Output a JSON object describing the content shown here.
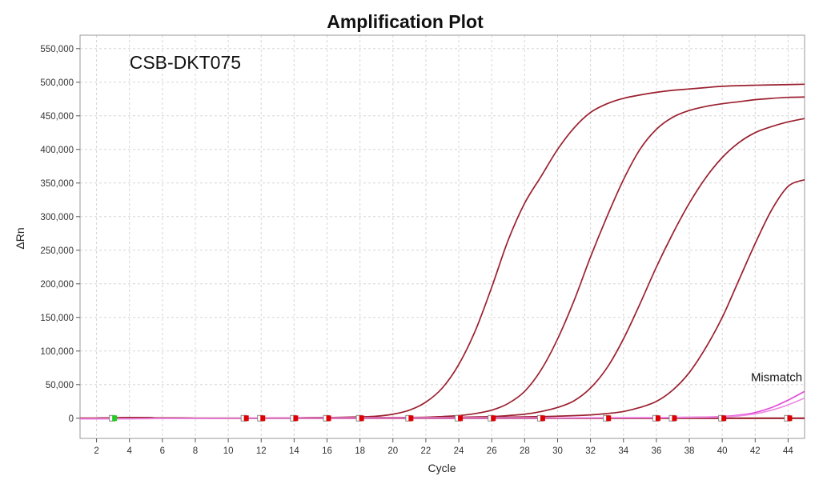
{
  "chart_data": {
    "type": "line",
    "title": "Amplification Plot",
    "xlabel": "Cycle",
    "ylabel": "ΔRn",
    "xlim": [
      1,
      45
    ],
    "ylim": [
      -30000,
      570000
    ],
    "x_ticks": [
      2,
      4,
      6,
      8,
      10,
      12,
      14,
      16,
      18,
      20,
      22,
      24,
      26,
      28,
      30,
      32,
      34,
      36,
      38,
      40,
      42,
      44
    ],
    "y_ticks": [
      0,
      50000,
      100000,
      150000,
      200000,
      250000,
      300000,
      350000,
      400000,
      450000,
      500000,
      550000
    ],
    "y_tick_labels": [
      "0",
      "50,000",
      "100,000",
      "150,000",
      "200,000",
      "250,000",
      "300,000",
      "350,000",
      "400,000",
      "450,000",
      "500,000",
      "550,000"
    ],
    "grid": true,
    "annotations": [
      {
        "text": "CSB-DKT075",
        "x": 4,
        "y": 520000,
        "style": "large"
      },
      {
        "text": "Mismatch",
        "x": 43.3,
        "y": 55000,
        "style": "small"
      }
    ],
    "series": [
      {
        "color": "#9b1f2e",
        "x": [
          1,
          2,
          4,
          6,
          8,
          10,
          12,
          14,
          16,
          18,
          19,
          20,
          21,
          22,
          23,
          24,
          25,
          26,
          27,
          28,
          29,
          30,
          31,
          32,
          33,
          34,
          35,
          36,
          37,
          38,
          39,
          40,
          42,
          44,
          45
        ],
        "y": [
          -1000,
          0,
          1000,
          500,
          0,
          0,
          0,
          500,
          1000,
          2000,
          3000,
          6000,
          12000,
          24000,
          45000,
          80000,
          130000,
          195000,
          265000,
          320000,
          360000,
          400000,
          432000,
          455000,
          468000,
          476000,
          481000,
          485000,
          488000,
          490000,
          492000,
          494000,
          495500,
          496500,
          497000
        ]
      },
      {
        "color": "#9b1f2e",
        "x": [
          1,
          2,
          4,
          6,
          8,
          10,
          12,
          14,
          16,
          18,
          20,
          22,
          23,
          24,
          25,
          26,
          27,
          28,
          29,
          30,
          31,
          32,
          33,
          34,
          35,
          36,
          37,
          38,
          39,
          40,
          41,
          42,
          43,
          44,
          45
        ],
        "y": [
          -1000,
          0,
          1000,
          500,
          0,
          0,
          0,
          500,
          1000,
          1000,
          1000,
          1500,
          2500,
          4000,
          7000,
          12000,
          22000,
          40000,
          72000,
          118000,
          175000,
          240000,
          300000,
          355000,
          400000,
          430000,
          448000,
          458000,
          464000,
          468000,
          471000,
          474000,
          476000,
          477500,
          478000
        ]
      },
      {
        "color": "#9b1f2e",
        "x": [
          1,
          2,
          4,
          6,
          8,
          10,
          12,
          14,
          16,
          18,
          20,
          22,
          24,
          26,
          27,
          28,
          29,
          30,
          31,
          32,
          33,
          34,
          35,
          36,
          37,
          38,
          39,
          40,
          41,
          42,
          43,
          44,
          45
        ],
        "y": [
          -1000,
          0,
          1000,
          500,
          0,
          0,
          0,
          500,
          1000,
          1000,
          1000,
          1000,
          1500,
          2500,
          4000,
          6000,
          10000,
          16000,
          26000,
          45000,
          75000,
          118000,
          170000,
          225000,
          275000,
          320000,
          358000,
          388000,
          410000,
          425000,
          434000,
          441000,
          446000
        ]
      },
      {
        "color": "#9b1f2e",
        "x": [
          1,
          2,
          4,
          6,
          8,
          10,
          12,
          14,
          16,
          18,
          20,
          22,
          24,
          26,
          28,
          30,
          32,
          33,
          34,
          35,
          36,
          37,
          38,
          39,
          40,
          41,
          42,
          43,
          44,
          45
        ],
        "y": [
          -1000,
          0,
          1000,
          500,
          0,
          0,
          0,
          500,
          1000,
          1000,
          1000,
          1000,
          1000,
          1500,
          2000,
          3000,
          5000,
          7000,
          10000,
          16000,
          25000,
          42000,
          68000,
          105000,
          150000,
          205000,
          260000,
          310000,
          345000,
          355000
        ]
      },
      {
        "color": "#e24ad6",
        "x": [
          1,
          10,
          20,
          30,
          36,
          38,
          40,
          41,
          42,
          43,
          44,
          45
        ],
        "y": [
          -1000,
          0,
          500,
          500,
          1000,
          1500,
          2500,
          4500,
          8500,
          16000,
          27000,
          40000
        ]
      },
      {
        "color": "#ee8ae4",
        "x": [
          1,
          10,
          20,
          30,
          36,
          38,
          40,
          41,
          42,
          43,
          44,
          45
        ],
        "y": [
          -1000,
          0,
          500,
          500,
          800,
          1200,
          2000,
          3500,
          6500,
          12000,
          20000,
          30000
        ]
      }
    ],
    "threshold_markers": [
      {
        "x": 3,
        "color": "#22cc22",
        "outline": "#888888"
      },
      {
        "x": 11,
        "color": "#dd0000",
        "outline": "#888888"
      },
      {
        "x": 12,
        "color": "#dd0000",
        "outline": "#888888"
      },
      {
        "x": 14,
        "color": "#dd0000",
        "outline": "#888888"
      },
      {
        "x": 16,
        "color": "#dd0000",
        "outline": "#888888"
      },
      {
        "x": 18,
        "color": "#dd0000",
        "outline": "#888888"
      },
      {
        "x": 21,
        "color": "#dd0000",
        "outline": "#888888"
      },
      {
        "x": 24,
        "color": "#dd0000",
        "outline": "#888888"
      },
      {
        "x": 26,
        "color": "#dd0000",
        "outline": "#888888"
      },
      {
        "x": 29,
        "color": "#dd0000",
        "outline": "#888888"
      },
      {
        "x": 33,
        "color": "#dd0000",
        "outline": "#888888"
      },
      {
        "x": 36,
        "color": "#dd0000",
        "outline": "#888888"
      },
      {
        "x": 37,
        "color": "#dd0000",
        "outline": "#888888"
      },
      {
        "x": 40,
        "color": "#dd0000",
        "outline": "#888888"
      },
      {
        "x": 44,
        "color": "#dd0000",
        "outline": "#888888"
      }
    ],
    "baseline_color": "#9b1f2e"
  }
}
